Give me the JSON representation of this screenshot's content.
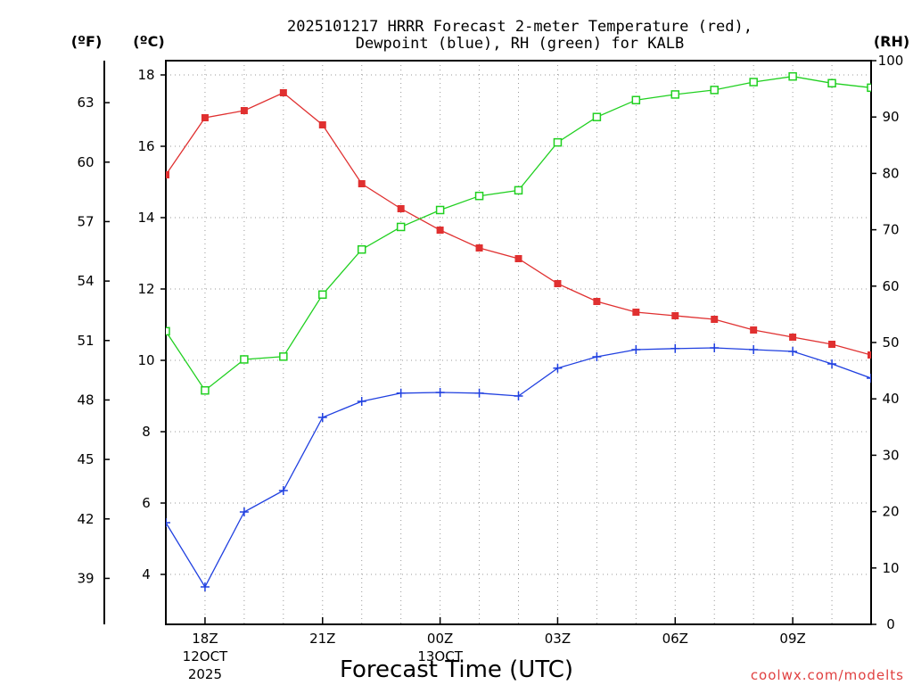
{
  "chart_data": {
    "type": "line",
    "title_lines": [
      "2025101217 HRRR Forecast 2-meter Temperature (red),",
      "Dewpoint (blue), RH (green) for KALB"
    ],
    "xlabel": "Forecast Time (UTC)",
    "credit": "coolwx.com/modelts",
    "units": {
      "fahrenheit": "(ºF)",
      "celsius": "(ºC)",
      "rh": "(RH)"
    },
    "x_hours": [
      17,
      18,
      19,
      20,
      21,
      22,
      23,
      24,
      25,
      26,
      27,
      28,
      29,
      30,
      31,
      32,
      33,
      34,
      35
    ],
    "xlim": [
      17,
      35
    ],
    "x_ticks": [
      {
        "hour": 18,
        "label": "18Z",
        "sub1": "12OCT",
        "sub2": "2025"
      },
      {
        "hour": 21,
        "label": "21Z"
      },
      {
        "hour": 24,
        "label": "00Z",
        "sub1": "13OCT"
      },
      {
        "hour": 27,
        "label": "03Z"
      },
      {
        "hour": 30,
        "label": "06Z"
      },
      {
        "hour": 33,
        "label": "09Z"
      }
    ],
    "celsius_axis": {
      "range": [
        2.6,
        18.4
      ],
      "ticks": [
        4,
        6,
        8,
        10,
        12,
        14,
        16,
        18
      ]
    },
    "fahrenheit_ticks": [
      39,
      42,
      45,
      48,
      51,
      54,
      57,
      60,
      63
    ],
    "rh_axis": {
      "range": [
        0,
        100
      ],
      "ticks": [
        0,
        10,
        20,
        30,
        40,
        50,
        60,
        70,
        80,
        90,
        100
      ]
    },
    "series": [
      {
        "name": "Temperature",
        "axis": "celsius",
        "color": "#e03030",
        "marker": "filled-square",
        "values": [
          15.2,
          16.8,
          17.0,
          17.5,
          16.6,
          14.95,
          14.25,
          13.65,
          13.15,
          12.85,
          12.15,
          11.65,
          11.35,
          11.25,
          11.15,
          10.85,
          10.65,
          10.45,
          10.15
        ]
      },
      {
        "name": "Dewpoint",
        "axis": "celsius",
        "color": "#2040e0",
        "marker": "plus",
        "values": [
          5.45,
          3.65,
          5.75,
          6.35,
          8.4,
          8.85,
          9.08,
          9.1,
          9.08,
          9.0,
          9.78,
          10.1,
          10.3,
          10.33,
          10.35,
          10.3,
          10.25,
          9.9,
          9.5
        ]
      },
      {
        "name": "RH",
        "axis": "rh",
        "color": "#20d020",
        "marker": "open-square",
        "values": [
          52,
          41.5,
          47,
          47.5,
          58.5,
          66.5,
          70.5,
          73.5,
          76,
          77,
          85.5,
          90,
          93,
          94,
          94.8,
          96.2,
          97.2,
          96,
          95.2
        ]
      }
    ]
  }
}
